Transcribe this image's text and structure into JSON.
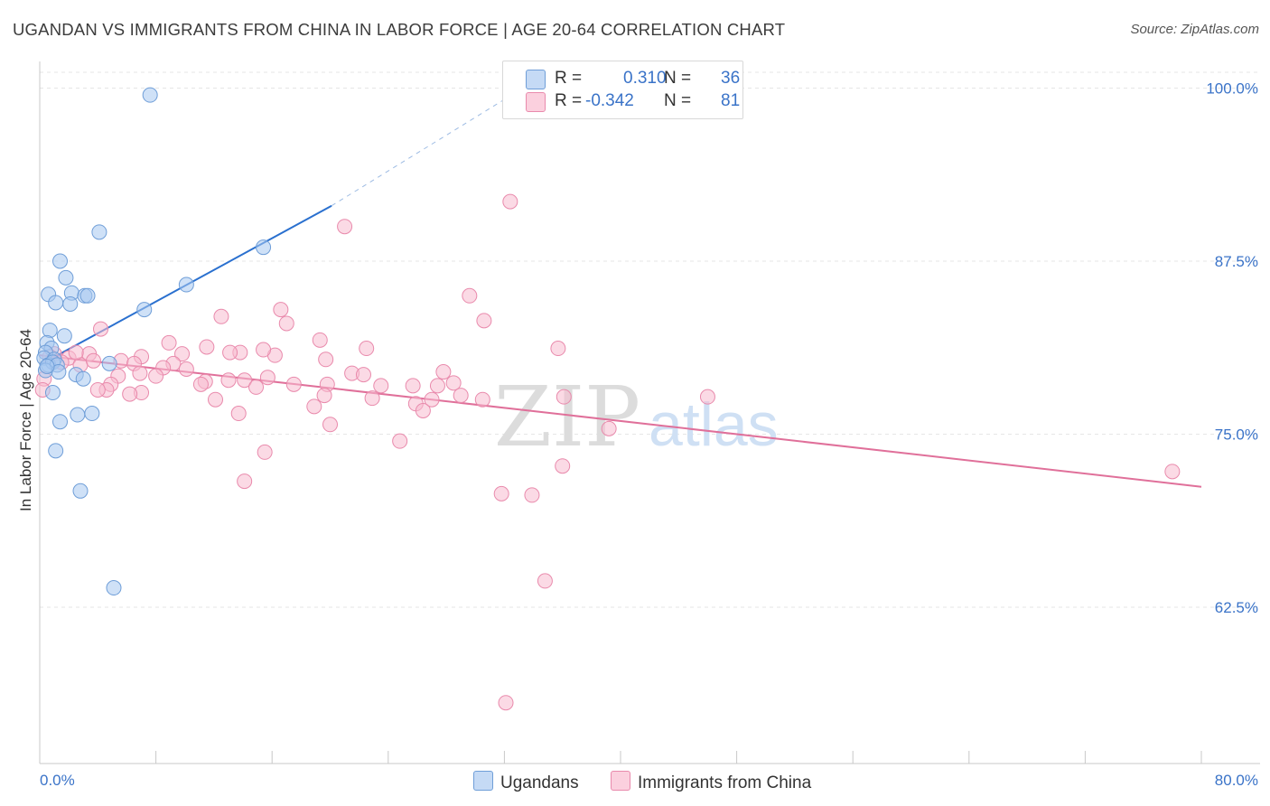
{
  "title": "UGANDAN VS IMMIGRANTS FROM CHINA IN LABOR FORCE | AGE 20-64 CORRELATION CHART",
  "source": "Source: ZipAtlas.com",
  "watermark": {
    "zip": "ZIP",
    "atlas": "atlas"
  },
  "legend": {
    "r_label": "R =",
    "n_label": "N =",
    "rows": [
      {
        "r": "0.310",
        "n": "36",
        "color": "#a8c8f0"
      },
      {
        "r": "-0.342",
        "n": "81",
        "color": "#f8bcd0"
      }
    ]
  },
  "bottom_legend": [
    "Ugandans",
    "Immigrants from China"
  ],
  "colors": {
    "blue_fill": "#a8c8f0",
    "blue_stroke": "#6f9ed8",
    "blue_line": "#2a70cf",
    "pink_fill": "#f8bcd0",
    "pink_stroke": "#e98aac",
    "pink_line": "#e0709a",
    "axis_text": "#3a73c8"
  },
  "chart_data": {
    "type": "scatter",
    "title": "UGANDAN VS IMMIGRANTS FROM CHINA IN LABOR FORCE | AGE 20-64 CORRELATION CHART",
    "xlabel": "",
    "ylabel": "In Labor Force | Age 20-64",
    "xlim": [
      0,
      80
    ],
    "ylim": [
      51,
      102
    ],
    "x_tick_labels": [
      "0.0%",
      "80.0%"
    ],
    "y_ticks": [
      62.5,
      75.0,
      87.5,
      100.0
    ],
    "y_tick_labels": [
      "62.5%",
      "75.0%",
      "87.5%",
      "100.0%"
    ],
    "grid": true,
    "legend_position": "top-center",
    "series": [
      {
        "name": "Ugandans",
        "r": 0.31,
        "n": 36,
        "points": [
          [
            7.6,
            99.5
          ],
          [
            4.1,
            89.6
          ],
          [
            15.4,
            88.5
          ],
          [
            1.4,
            87.5
          ],
          [
            1.8,
            86.3
          ],
          [
            10.1,
            85.8
          ],
          [
            0.6,
            85.1
          ],
          [
            2.2,
            85.2
          ],
          [
            3.1,
            85.0
          ],
          [
            3.3,
            85.0
          ],
          [
            1.1,
            84.5
          ],
          [
            2.1,
            84.4
          ],
          [
            7.2,
            84.0
          ],
          [
            0.7,
            82.5
          ],
          [
            1.7,
            82.1
          ],
          [
            0.5,
            81.6
          ],
          [
            0.8,
            81.2
          ],
          [
            0.4,
            80.9
          ],
          [
            0.3,
            80.5
          ],
          [
            1.0,
            80.4
          ],
          [
            0.6,
            80.0
          ],
          [
            0.9,
            80.2
          ],
          [
            1.2,
            80.0
          ],
          [
            4.8,
            80.1
          ],
          [
            0.4,
            79.6
          ],
          [
            1.3,
            79.5
          ],
          [
            0.5,
            79.9
          ],
          [
            2.5,
            79.3
          ],
          [
            3.0,
            79.0
          ],
          [
            0.9,
            78.0
          ],
          [
            3.6,
            76.5
          ],
          [
            2.6,
            76.4
          ],
          [
            1.4,
            75.9
          ],
          [
            1.1,
            73.8
          ],
          [
            2.8,
            70.9
          ],
          [
            5.1,
            63.9
          ]
        ],
        "trend": {
          "x": [
            0,
            20.1
          ],
          "y": [
            80.0,
            91.5
          ]
        },
        "trend_extension": {
          "x": [
            20.1,
            32.5
          ],
          "y": [
            91.5,
            99.5
          ]
        }
      },
      {
        "name": "Immigrants from China",
        "r": -0.342,
        "n": 81,
        "points": [
          [
            32.4,
            91.8
          ],
          [
            21.0,
            90.0
          ],
          [
            29.6,
            85.0
          ],
          [
            16.6,
            84.0
          ],
          [
            12.5,
            83.5
          ],
          [
            30.6,
            83.2
          ],
          [
            17.0,
            83.0
          ],
          [
            4.2,
            82.6
          ],
          [
            19.3,
            81.8
          ],
          [
            8.9,
            81.6
          ],
          [
            11.5,
            81.3
          ],
          [
            22.5,
            81.2
          ],
          [
            35.7,
            81.2
          ],
          [
            13.8,
            80.9
          ],
          [
            1.0,
            80.8
          ],
          [
            3.4,
            80.8
          ],
          [
            0.7,
            80.6
          ],
          [
            7.0,
            80.6
          ],
          [
            9.8,
            80.8
          ],
          [
            2.0,
            80.5
          ],
          [
            13.1,
            80.9
          ],
          [
            1.5,
            80.2
          ],
          [
            16.2,
            80.7
          ],
          [
            5.6,
            80.3
          ],
          [
            19.7,
            80.4
          ],
          [
            9.2,
            80.1
          ],
          [
            2.8,
            80.0
          ],
          [
            8.5,
            79.8
          ],
          [
            10.1,
            79.7
          ],
          [
            6.5,
            80.1
          ],
          [
            21.5,
            79.4
          ],
          [
            8.0,
            79.2
          ],
          [
            15.7,
            79.1
          ],
          [
            22.3,
            79.3
          ],
          [
            27.8,
            79.5
          ],
          [
            0.3,
            79.0
          ],
          [
            5.4,
            79.2
          ],
          [
            13.0,
            78.9
          ],
          [
            14.1,
            78.9
          ],
          [
            11.4,
            78.8
          ],
          [
            4.9,
            78.6
          ],
          [
            11.1,
            78.6
          ],
          [
            14.9,
            78.4
          ],
          [
            17.5,
            78.6
          ],
          [
            23.5,
            78.5
          ],
          [
            25.7,
            78.5
          ],
          [
            28.5,
            78.7
          ],
          [
            19.8,
            78.6
          ],
          [
            27.4,
            78.5
          ],
          [
            4.6,
            78.2
          ],
          [
            4.0,
            78.2
          ],
          [
            7.0,
            78.0
          ],
          [
            6.2,
            77.9
          ],
          [
            19.6,
            77.8
          ],
          [
            30.5,
            77.5
          ],
          [
            22.9,
            77.6
          ],
          [
            12.1,
            77.5
          ],
          [
            36.1,
            77.7
          ],
          [
            46.0,
            77.7
          ],
          [
            29.0,
            77.8
          ],
          [
            25.9,
            77.2
          ],
          [
            18.9,
            77.0
          ],
          [
            27.0,
            77.5
          ],
          [
            26.4,
            76.7
          ],
          [
            0.2,
            78.2
          ],
          [
            13.7,
            76.5
          ],
          [
            20.0,
            75.7
          ],
          [
            39.2,
            75.4
          ],
          [
            24.8,
            74.5
          ],
          [
            15.5,
            73.7
          ],
          [
            36.0,
            72.7
          ],
          [
            78.0,
            72.3
          ],
          [
            14.1,
            71.6
          ],
          [
            31.8,
            70.7
          ],
          [
            33.9,
            70.6
          ],
          [
            34.8,
            64.4
          ],
          [
            32.1,
            55.6
          ],
          [
            15.4,
            81.1
          ],
          [
            6.9,
            79.4
          ],
          [
            3.7,
            80.3
          ],
          [
            2.5,
            80.9
          ]
        ],
        "trend": {
          "x": [
            0,
            80
          ],
          "y": [
            80.7,
            71.2
          ]
        }
      }
    ]
  }
}
